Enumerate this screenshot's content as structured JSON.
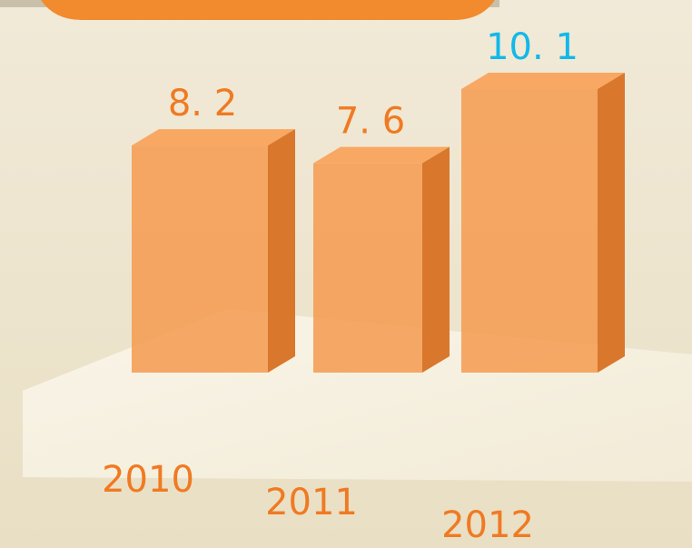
{
  "chart_data": {
    "type": "bar3d",
    "categories": [
      "2010",
      "2011",
      "2012"
    ],
    "values": [
      8.2,
      7.6,
      10.1
    ],
    "value_labels": [
      "8. 2",
      "7. 6",
      "10. 1"
    ],
    "color": "#f59a4f",
    "label_colors": [
      "#f07a22",
      "#f07a22",
      "#12b8e8"
    ],
    "category_color": "#f07a22"
  }
}
